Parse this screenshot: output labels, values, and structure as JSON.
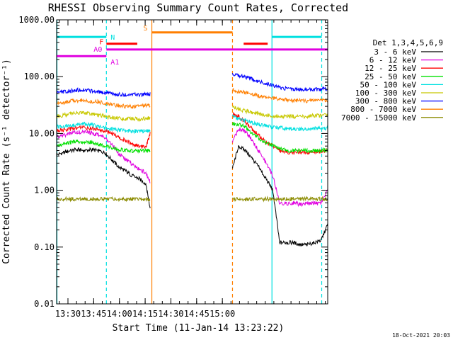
{
  "chart_data": {
    "type": "line",
    "title": "RHESSI Observing Summary Count Rates, Corrected",
    "xlabel": "Start Time (11-Jan-14 13:23:22)",
    "ylabel": "Corrected Count Rate (s⁻¹ detector⁻¹)",
    "yscale": "log",
    "ylim": [
      0.01,
      1000
    ],
    "xlim_minutes": [
      0,
      158
    ],
    "x_unit": "minutes after 13:23:22",
    "y_ticks": [
      {
        "value": 0.01,
        "label": "0.01"
      },
      {
        "value": 0.1,
        "label": "0.10"
      },
      {
        "value": 1,
        "label": "1.00"
      },
      {
        "value": 10,
        "label": "10.00"
      },
      {
        "value": 100,
        "label": "100.00"
      },
      {
        "value": 1000,
        "label": "1000.00"
      }
    ],
    "x_ticks": [
      {
        "value": 6.6,
        "label": "13:30"
      },
      {
        "value": 21.6,
        "label": "13:45"
      },
      {
        "value": 36.6,
        "label": "14:00"
      },
      {
        "value": 51.6,
        "label": "14:15"
      },
      {
        "value": 66.6,
        "label": "14:30"
      },
      {
        "value": 81.6,
        "label": "14:45"
      },
      {
        "value": 96.6,
        "label": "15:00"
      }
    ],
    "legend_title": "Det 1,3,4,5,6,9",
    "legend_position": "right",
    "gap_minutes": [
      54.6,
      102.5
    ],
    "x": [
      0,
      4,
      8,
      12,
      16,
      20,
      24,
      28,
      32,
      36,
      40,
      44,
      48,
      52,
      54.5,
      102.5,
      106,
      110,
      114,
      118,
      122,
      126,
      130,
      134,
      138,
      142,
      146,
      150,
      154,
      158
    ],
    "series": [
      {
        "name": "3 - 6 keV",
        "color": "#000000",
        "values": [
          4.2,
          4.6,
          5.0,
          5.2,
          5.0,
          5.2,
          5.0,
          4.6,
          3.5,
          2.6,
          2.2,
          1.8,
          1.6,
          1.3,
          0.5,
          2.4,
          6.0,
          5.0,
          3.6,
          2.5,
          1.6,
          1.0,
          0.12,
          0.12,
          0.12,
          0.11,
          0.11,
          0.12,
          0.13,
          0.25
        ]
      },
      {
        "name": "6 - 12 keV",
        "color": "#e000e0",
        "values": [
          8.8,
          9.2,
          10.0,
          10.6,
          10.6,
          10.2,
          9.6,
          8.6,
          6.6,
          4.4,
          3.5,
          2.9,
          2.4,
          2.0,
          1.4,
          7.0,
          12.0,
          11.0,
          7.5,
          4.8,
          3.0,
          1.8,
          0.6,
          0.58,
          0.6,
          0.56,
          0.58,
          0.6,
          0.58,
          1.0
        ]
      },
      {
        "name": "12 - 25 keV",
        "color": "#ff0000",
        "values": [
          11.0,
          11.5,
          12.0,
          12.5,
          12.6,
          12.2,
          11.8,
          11.0,
          10.0,
          8.5,
          7.5,
          6.6,
          6.0,
          5.6,
          10.0,
          22.0,
          20.0,
          16.0,
          12.0,
          9.0,
          7.0,
          6.0,
          5.0,
          4.6,
          4.6,
          4.7,
          4.6,
          4.8,
          4.8,
          5.0
        ]
      },
      {
        "name": "25 - 50 keV",
        "color": "#00e000",
        "values": [
          6.2,
          6.5,
          7.0,
          7.2,
          7.0,
          7.0,
          6.5,
          6.1,
          5.7,
          5.2,
          5.0,
          4.9,
          4.9,
          5.0,
          5.0,
          15.0,
          14.5,
          13.0,
          10.0,
          8.0,
          6.8,
          6.2,
          5.4,
          5.0,
          5.0,
          5.0,
          5.0,
          5.0,
          5.0,
          5.2
        ]
      },
      {
        "name": "50 - 100 keV",
        "color": "#00e0e0",
        "values": [
          13.0,
          13.5,
          14.0,
          14.6,
          14.6,
          14.2,
          13.6,
          12.6,
          12.0,
          11.5,
          11.2,
          11.0,
          11.0,
          11.0,
          11.0,
          20.0,
          18.0,
          17.0,
          15.5,
          14.5,
          13.5,
          13.0,
          12.5,
          12.2,
          12.0,
          12.0,
          12.0,
          12.2,
          12.2,
          12.5
        ]
      },
      {
        "name": "100 - 300 keV",
        "color": "#c8c800",
        "values": [
          20.0,
          21.0,
          22.0,
          23.0,
          23.0,
          22.0,
          21.0,
          20.0,
          19.0,
          18.5,
          18.0,
          18.0,
          18.0,
          18.5,
          18.5,
          30.0,
          27.0,
          25.0,
          23.5,
          22.0,
          21.0,
          20.5,
          20.0,
          20.0,
          20.0,
          20.0,
          20.0,
          20.5,
          20.5,
          21.0
        ]
      },
      {
        "name": "300 - 800 keV",
        "color": "#0000ff",
        "values": [
          52.0,
          54.0,
          56.0,
          58.0,
          58.0,
          56.0,
          54.0,
          52.0,
          50.0,
          49.0,
          48.0,
          48.0,
          48.0,
          49.0,
          49.0,
          112.0,
          105.0,
          98.0,
          90.0,
          82.0,
          76.0,
          70.0,
          65.0,
          62.0,
          60.0,
          60.0,
          59.0,
          60.0,
          60.0,
          61.0
        ]
      },
      {
        "name": "800 - 7000 keV",
        "color": "#ff7f00",
        "values": [
          34.0,
          35.0,
          37.0,
          38.0,
          38.0,
          37.0,
          36.0,
          34.0,
          32.0,
          31.0,
          30.0,
          30.0,
          30.0,
          31.0,
          31.0,
          58.0,
          55.0,
          52.0,
          49.0,
          46.0,
          44.0,
          42.0,
          40.0,
          39.0,
          38.0,
          38.0,
          37.0,
          38.0,
          38.0,
          39.0
        ]
      },
      {
        "name": "7000 - 15000 keV",
        "color": "#8b8b00",
        "values": [
          0.7,
          0.7,
          0.7,
          0.7,
          0.7,
          0.7,
          0.7,
          0.7,
          0.7,
          0.7,
          0.7,
          0.7,
          0.7,
          0.7,
          0.7,
          0.7,
          0.7,
          0.7,
          0.7,
          0.7,
          0.7,
          0.7,
          0.7,
          0.7,
          0.7,
          0.7,
          0.7,
          0.7,
          0.7,
          0.7
        ]
      }
    ],
    "vertical_markers": [
      {
        "t": 0.2,
        "color": "#00e0e0",
        "style": "solid"
      },
      {
        "t": 29.0,
        "color": "#00e0e0",
        "style": "dashed"
      },
      {
        "t": 55.5,
        "color": "#ff7f00",
        "style": "solid"
      },
      {
        "t": 102.5,
        "color": "#ff7f00",
        "style": "dashed"
      },
      {
        "t": 125.5,
        "color": "#00e0e0",
        "style": "solid"
      },
      {
        "t": 154.5,
        "color": "#00e0e0",
        "style": "dashed"
      }
    ],
    "annotation_bars": [
      {
        "label": "N",
        "color": "#00e0e0",
        "y": 500,
        "spans": [
          [
            0,
            29
          ],
          [
            125.5,
            154.5
          ]
        ]
      },
      {
        "label": "S",
        "color": "#ff7f00",
        "y": 600,
        "spans": [
          [
            55.5,
            102.5
          ]
        ]
      },
      {
        "label": "F",
        "color": "#ff0000",
        "y": 380,
        "spans": [
          [
            29,
            47
          ],
          [
            109,
            123
          ]
        ]
      },
      {
        "label": "A0",
        "color": "#e000e0",
        "y": 300,
        "spans": [
          [
            29,
            158
          ]
        ]
      },
      {
        "label": "A1",
        "color": "#e000e0",
        "y": 230,
        "spans": [
          [
            0,
            29
          ]
        ]
      }
    ],
    "timestamp": "18-Oct-2021 20:03"
  }
}
